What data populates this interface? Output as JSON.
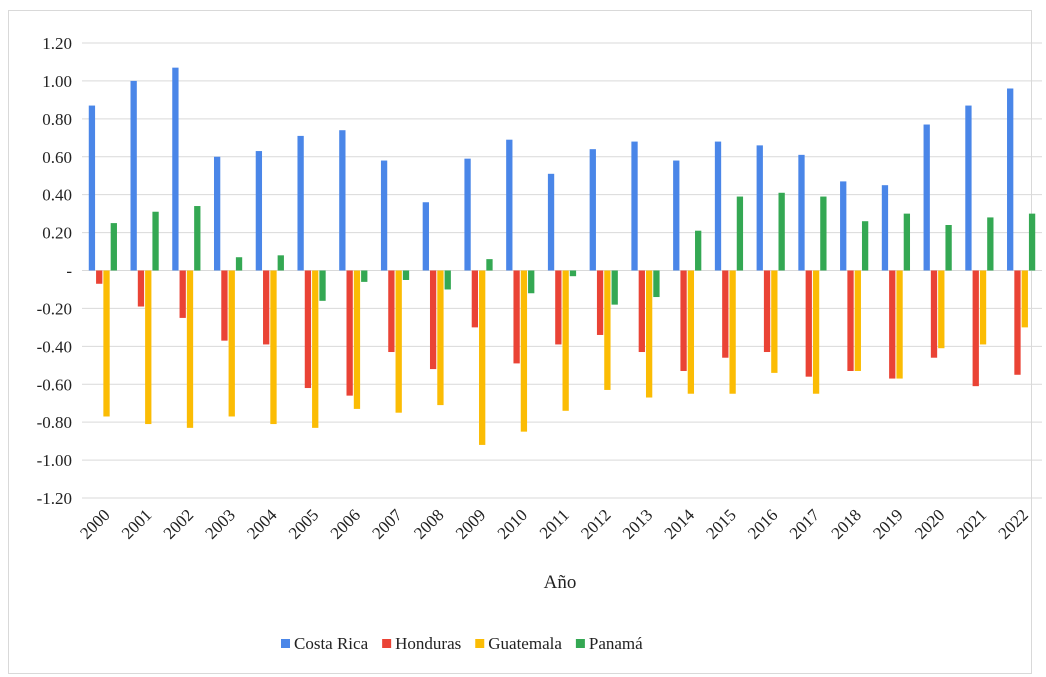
{
  "chart_data": {
    "type": "bar",
    "title": "",
    "xlabel": "Año",
    "ylabel": "",
    "ylim": [
      -1.2,
      1.2
    ],
    "yticks": [
      1.2,
      1.0,
      0.8,
      0.6,
      0.4,
      0.2,
      0,
      -0.2,
      -0.4,
      -0.6,
      -0.8,
      -1.0,
      -1.2
    ],
    "ytick_labels": [
      "1.20",
      "1.00",
      "0.80",
      "0.60",
      "0.40",
      "0.20",
      "-",
      "-0.20",
      "-0.40",
      "-0.60",
      "-0.80",
      "-1.00",
      "-1.20"
    ],
    "grid": true,
    "legend_position": "bottom",
    "categories": [
      "2000",
      "2001",
      "2002",
      "2003",
      "2004",
      "2005",
      "2006",
      "2007",
      "2008",
      "2009",
      "2010",
      "2011",
      "2012",
      "2013",
      "2014",
      "2015",
      "2016",
      "2017",
      "2018",
      "2019",
      "2020",
      "2021",
      "2022"
    ],
    "series": [
      {
        "name": "Costa Rica",
        "color": "#4a86e8",
        "values": [
          0.87,
          1.0,
          1.07,
          0.6,
          0.63,
          0.71,
          0.74,
          0.58,
          0.36,
          0.59,
          0.69,
          0.51,
          0.64,
          0.68,
          0.58,
          0.68,
          0.66,
          0.61,
          0.47,
          0.45,
          0.77,
          0.87,
          0.96
        ]
      },
      {
        "name": "Honduras",
        "color": "#ea4335",
        "values": [
          -0.07,
          -0.19,
          -0.25,
          -0.37,
          -0.39,
          -0.62,
          -0.66,
          -0.43,
          -0.52,
          -0.3,
          -0.49,
          -0.39,
          -0.34,
          -0.43,
          -0.53,
          -0.46,
          -0.43,
          -0.56,
          -0.53,
          -0.57,
          -0.46,
          -0.61,
          -0.55
        ]
      },
      {
        "name": "Guatemala",
        "color": "#fbbc04",
        "values": [
          -0.77,
          -0.81,
          -0.83,
          -0.77,
          -0.81,
          -0.83,
          -0.73,
          -0.75,
          -0.71,
          -0.92,
          -0.85,
          -0.74,
          -0.63,
          -0.67,
          -0.65,
          -0.65,
          -0.54,
          -0.65,
          -0.53,
          -0.57,
          -0.41,
          -0.39,
          -0.3
        ]
      },
      {
        "name": "Panamá",
        "color": "#34a853",
        "values": [
          0.25,
          0.31,
          0.34,
          0.07,
          0.08,
          -0.16,
          -0.06,
          -0.05,
          -0.1,
          0.06,
          -0.12,
          -0.03,
          -0.18,
          -0.14,
          0.21,
          0.39,
          0.41,
          0.39,
          0.26,
          0.3,
          0.24,
          0.28,
          0.3
        ]
      }
    ]
  }
}
